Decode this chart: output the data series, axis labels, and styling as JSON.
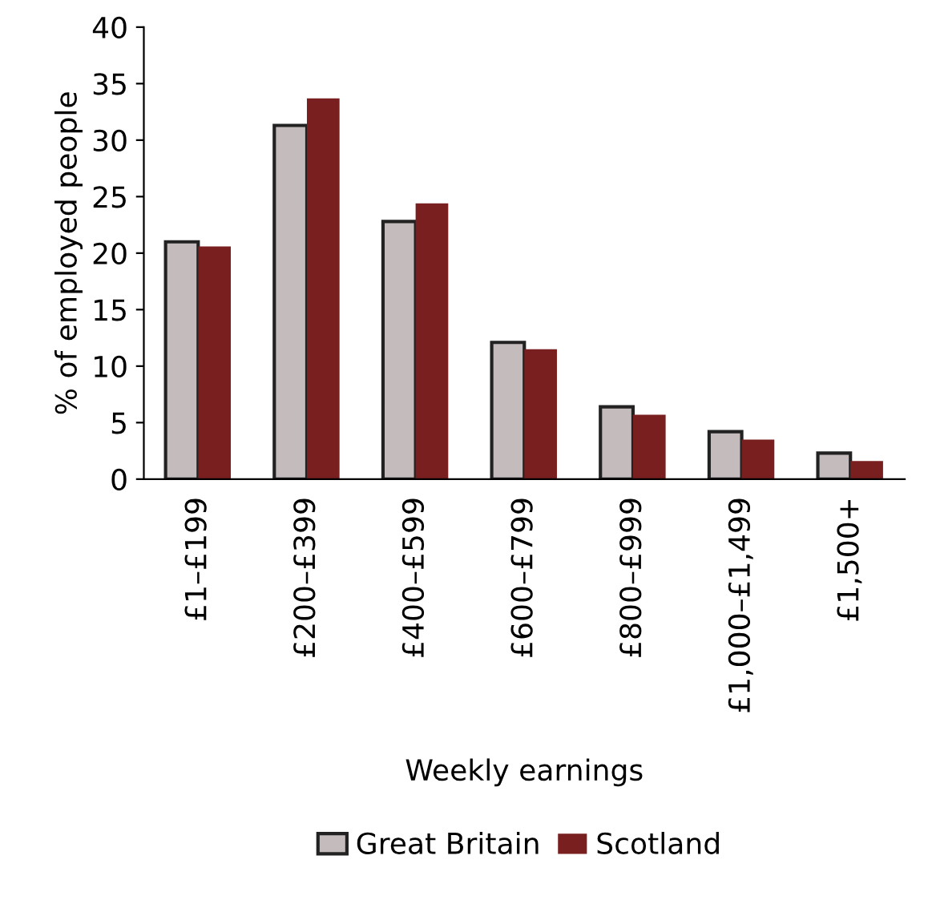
{
  "chart_data": {
    "type": "bar",
    "xlabel": "Weekly earnings",
    "ylabel": "% of employed people",
    "categories": [
      "£1–£199",
      "£200–£399",
      "£400–£599",
      "£600–£799",
      "£800–£999",
      "£1,000–£1,499",
      "£1,500+"
    ],
    "series": [
      {
        "name": "Great Britain",
        "color": "#c4bcbc",
        "values": [
          21.0,
          31.3,
          22.8,
          12.1,
          6.4,
          4.2,
          2.3
        ]
      },
      {
        "name": "Scotland",
        "color": "#7a1f1f",
        "values": [
          20.6,
          33.7,
          24.4,
          11.5,
          5.7,
          3.5,
          1.6
        ]
      }
    ],
    "ylim": [
      0,
      40
    ],
    "yticks": [
      0,
      5,
      10,
      15,
      20,
      25,
      30,
      35,
      40
    ],
    "grid": false,
    "legend": "bottom"
  }
}
